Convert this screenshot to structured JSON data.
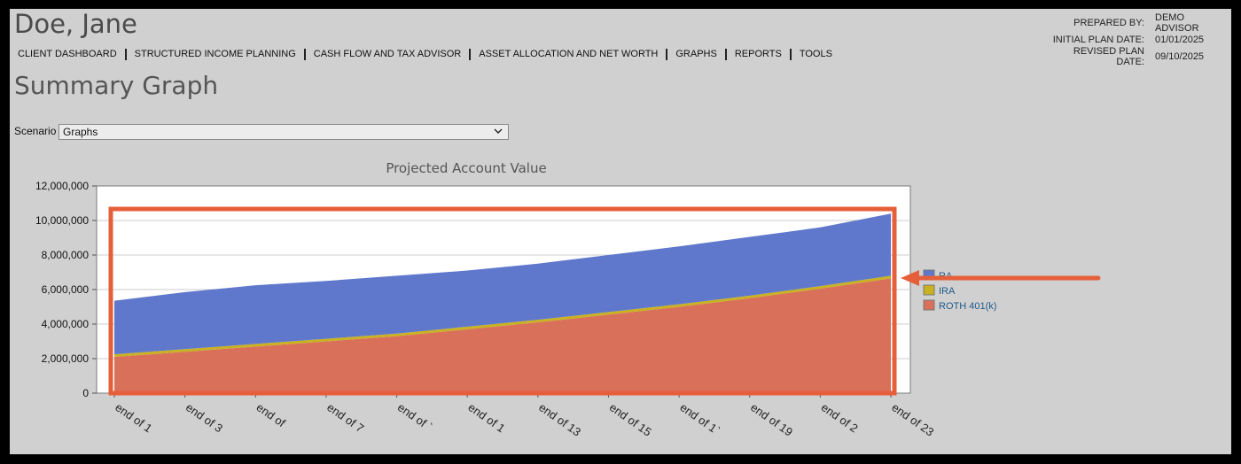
{
  "client": {
    "name": "Doe, Jane"
  },
  "plan_info": {
    "prepared_by_label": "PREPARED BY:",
    "prepared_by": "DEMO ADVISOR",
    "initial_label": "INITIAL PLAN DATE:",
    "initial_date": "01/01/2025",
    "revised_label": "REVISED PLAN DATE:",
    "revised_date": "09/10/2025"
  },
  "nav": [
    "CLIENT DASHBOARD",
    "STRUCTURED INCOME PLANNING",
    "CASH FLOW AND TAX ADVISOR",
    "ASSET ALLOCATION AND NET WORTH",
    "GRAPHS",
    "REPORTS",
    "TOOLS"
  ],
  "page_title": "Summary Graph",
  "scenario": {
    "label": "Scenario",
    "selected": "Graphs"
  },
  "colors": {
    "roth": "#d9705a",
    "ira": "#c8b220",
    "ra": "#6078cc",
    "highlight": "#e5603a"
  },
  "icons": {
    "dropdown": "chevron-down-icon",
    "annotation": "arrow-left-icon"
  },
  "chart_data": {
    "type": "area",
    "stacked": true,
    "title": "Projected Account Value",
    "x": [
      "end of 1",
      "end of 3",
      "end of",
      "end of 7",
      "end of `",
      "end of 1",
      "end of 13",
      "end of 15",
      "end of 1`",
      "end of 19",
      "end of 2",
      "end of 23"
    ],
    "ylim": [
      0,
      12000000
    ],
    "yticks": [
      "0",
      "2,000,000",
      "4,000,000",
      "6,000,000",
      "8,000,000",
      "10,000,000",
      "12,000,000"
    ],
    "series": [
      {
        "name": "ROTH 401(k)",
        "values": [
          2100000,
          2400000,
          2700000,
          3000000,
          3300000,
          3700000,
          4100000,
          4550000,
          5000000,
          5500000,
          6050000,
          6650000
        ]
      },
      {
        "name": "IRA",
        "values": [
          150000,
          150000,
          150000,
          150000,
          150000,
          150000,
          150000,
          150000,
          150000,
          150000,
          150000,
          150000
        ]
      },
      {
        "name": "RA",
        "values": [
          3100000,
          3300000,
          3400000,
          3350000,
          3350000,
          3250000,
          3250000,
          3300000,
          3350000,
          3400000,
          3400000,
          3600000
        ]
      }
    ],
    "legend": [
      "RA",
      "IRA",
      "ROTH 401(k)"
    ],
    "legend_position": "right",
    "grid": true
  }
}
